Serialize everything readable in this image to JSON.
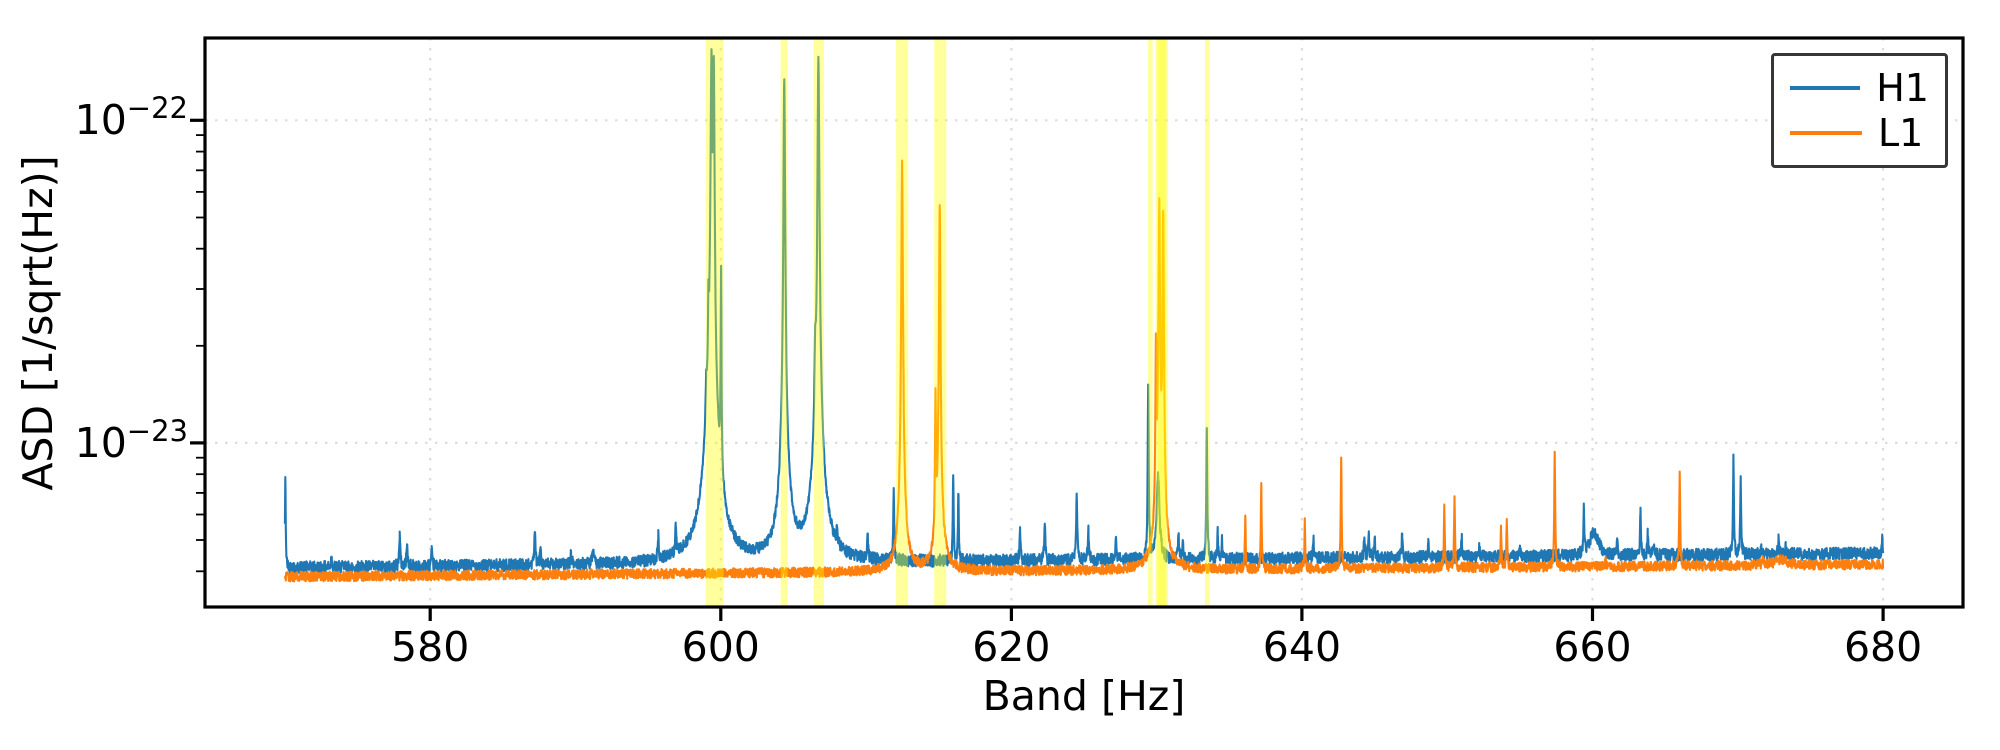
{
  "figure": {
    "background": "#ffffff",
    "frame_color": "#000000",
    "grid_color": "#dcdcdc"
  },
  "chart_data": {
    "type": "line",
    "title": "",
    "xlabel": "Band [Hz]",
    "ylabel": "ASD [1/sqrt(Hz)]",
    "yscale": "log",
    "xlim": [
      564.5,
      685.5
    ],
    "ylim": [
      3.1e-24,
      1.8e-22
    ],
    "x_data_range": [
      570,
      680
    ],
    "grid": {
      "show": true,
      "style": "dotted",
      "color": "#dcdcdc"
    },
    "xticks": [
      {
        "value": 580,
        "label": "580"
      },
      {
        "value": 600,
        "label": "600"
      },
      {
        "value": 620,
        "label": "620"
      },
      {
        "value": 640,
        "label": "640"
      },
      {
        "value": 660,
        "label": "660"
      },
      {
        "value": 680,
        "label": "680"
      }
    ],
    "yticks": [
      {
        "value": 1e-22,
        "base": "10",
        "exponent": "−22"
      },
      {
        "value": 1e-23,
        "base": "10",
        "exponent": "−23"
      }
    ],
    "legend": {
      "position": "upper right",
      "entries": [
        "H1",
        "L1"
      ]
    },
    "highlight_bands": {
      "color": "#ffff00",
      "alpha": 0.38,
      "ranges": [
        [
          598.97,
          600.2
        ],
        [
          604.12,
          604.6
        ],
        [
          606.4,
          607.1
        ],
        [
          612.07,
          612.9
        ],
        [
          614.69,
          615.52
        ],
        [
          629.41,
          629.72
        ],
        [
          629.93,
          630.79
        ],
        [
          630.05,
          630.65
        ],
        [
          633.32,
          633.66
        ]
      ]
    },
    "series": [
      {
        "name": "H1",
        "color": "#1f77b4",
        "baseline_start": 4.1e-24,
        "baseline_end": 4.55e-24,
        "noise": 0.045,
        "peaks": [
          [
            570.03,
            7.7e-24,
            0.025
          ],
          [
            573.2,
            4.4e-24,
            0.05
          ],
          [
            577.9,
            5.2e-24,
            0.04
          ],
          [
            578.4,
            4.9e-24,
            0.04
          ],
          [
            580.1,
            4.6e-24,
            0.04
          ],
          [
            587.2,
            5.3e-24,
            0.04
          ],
          [
            587.6,
            4.8e-24,
            0.04
          ],
          [
            589.7,
            4.5e-24,
            0.04
          ],
          [
            591.2,
            4.6e-24,
            0.05
          ],
          [
            595.7,
            5e-24,
            0.04
          ],
          [
            596.9,
            5.2e-24,
            0.04
          ],
          [
            599.0,
            8e-24,
            0.05
          ],
          [
            599.15,
            1.6e-23,
            0.03
          ],
          [
            599.36,
            1.5e-22,
            0.05
          ],
          [
            599.36,
            1.2e-23,
            0.45
          ],
          [
            599.52,
            1.38e-22,
            0.04
          ],
          [
            600.02,
            3.1e-23,
            0.025
          ],
          [
            604.37,
            1.3e-22,
            0.045
          ],
          [
            604.37,
            8e-24,
            0.35
          ],
          [
            606.5,
            1.2e-23,
            0.05
          ],
          [
            606.72,
            1.52e-22,
            0.05
          ],
          [
            606.72,
            9e-24,
            0.4
          ],
          [
            608.0,
            4.8e-24,
            0.04
          ],
          [
            610.1,
            5.2e-24,
            0.04
          ],
          [
            611.9,
            7.1e-24,
            0.03
          ],
          [
            616.0,
            8e-24,
            0.03
          ],
          [
            616.35,
            7e-24,
            0.03
          ],
          [
            620.6,
            5.3e-24,
            0.04
          ],
          [
            622.3,
            5.6e-24,
            0.04
          ],
          [
            624.5,
            6.9e-24,
            0.04
          ],
          [
            625.3,
            5.4e-24,
            0.04
          ],
          [
            627.2,
            5e-24,
            0.04
          ],
          [
            629.42,
            1.5e-23,
            0.03
          ],
          [
            630.1,
            8e-24,
            0.1
          ],
          [
            631.5,
            5.2e-24,
            0.04
          ],
          [
            631.8,
            5e-24,
            0.03
          ],
          [
            633.45,
            1.1e-23,
            0.03
          ],
          [
            634.2,
            5.4e-24,
            0.03
          ],
          [
            634.5,
            5e-24,
            0.03
          ],
          [
            640.8,
            5e-24,
            0.04
          ],
          [
            644.3,
            5.1e-24,
            0.04
          ],
          [
            644.6,
            5.3e-24,
            0.04
          ],
          [
            645.0,
            5.1e-24,
            0.04
          ],
          [
            646.9,
            5.2e-24,
            0.04
          ],
          [
            648.7,
            4.9e-24,
            0.04
          ],
          [
            651.0,
            5.1e-24,
            0.04
          ],
          [
            652.2,
            4.7e-24,
            0.04
          ],
          [
            655.0,
            4.8e-24,
            0.04
          ],
          [
            659.4,
            6.2e-24,
            0.03
          ],
          [
            660.1,
            5.3e-24,
            0.35
          ],
          [
            661.7,
            4.9e-24,
            0.04
          ],
          [
            663.3,
            6.1e-24,
            0.035
          ],
          [
            663.8,
            5.2e-24,
            0.035
          ],
          [
            664.2,
            4.9e-24,
            0.03
          ],
          [
            669.7,
            9.2e-24,
            0.03
          ],
          [
            670.2,
            7.7e-24,
            0.03
          ],
          [
            671.6,
            4.8e-24,
            0.03
          ],
          [
            672.8,
            5e-24,
            0.035
          ],
          [
            673.3,
            4.8e-24,
            0.035
          ],
          [
            679.95,
            5.2e-24,
            0.025
          ]
        ]
      },
      {
        "name": "L1",
        "color": "#ff7f0e",
        "baseline_start": 3.85e-24,
        "baseline_end": 4.2e-24,
        "noise": 0.035,
        "peaks": [
          [
            612.48,
            7.3e-23,
            0.04
          ],
          [
            612.48,
            6e-24,
            0.25
          ],
          [
            614.78,
            1.3e-23,
            0.03
          ],
          [
            615.07,
            5.3e-23,
            0.04
          ],
          [
            615.07,
            5.5e-24,
            0.3
          ],
          [
            629.95,
            1.85e-23,
            0.03
          ],
          [
            630.18,
            5.4e-23,
            0.045
          ],
          [
            630.18,
            6e-24,
            0.3
          ],
          [
            630.45,
            5e-23,
            0.04
          ],
          [
            636.1,
            5.8e-24,
            0.03
          ],
          [
            637.2,
            7.5e-24,
            0.03
          ],
          [
            640.2,
            5.7e-24,
            0.03
          ],
          [
            642.7,
            9e-24,
            0.03
          ],
          [
            649.8,
            6.3e-24,
            0.03
          ],
          [
            650.5,
            6.7e-24,
            0.03
          ],
          [
            653.7,
            5.4e-24,
            0.03
          ],
          [
            654.1,
            5.7e-24,
            0.03
          ],
          [
            657.4,
            9.4e-24,
            0.03
          ],
          [
            660.9,
            4.5e-24,
            0.03
          ],
          [
            666.0,
            8.1e-24,
            0.03
          ],
          [
            671.7,
            4.4e-24,
            0.05
          ],
          [
            673.0,
            4.35e-24,
            0.5
          ]
        ]
      }
    ]
  }
}
